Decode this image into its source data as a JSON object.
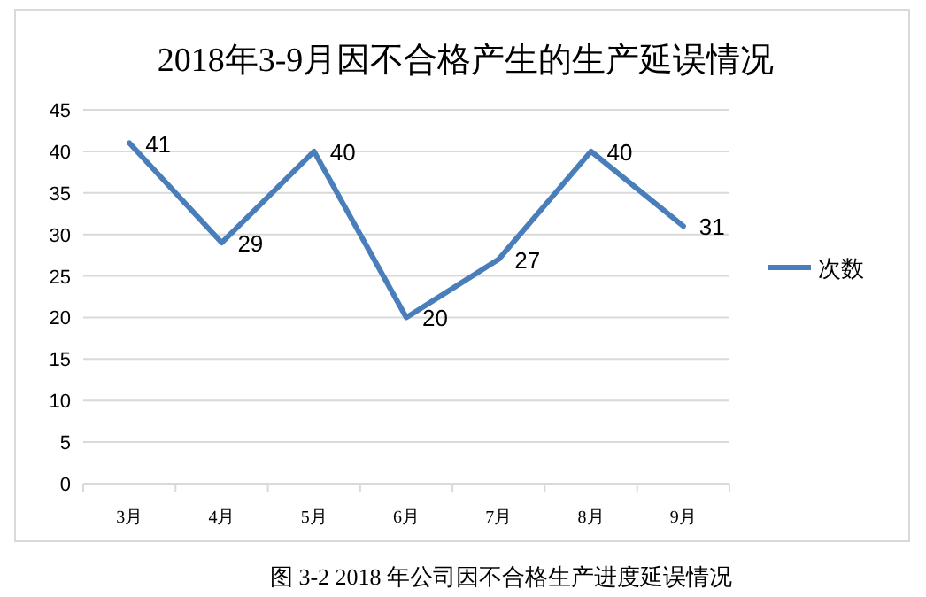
{
  "chart_data": {
    "type": "line",
    "title": "2018年3-9月因不合格产生的生产延误情况",
    "categories": [
      "3月",
      "4月",
      "5月",
      "6月",
      "7月",
      "8月",
      "9月"
    ],
    "series": [
      {
        "name": "次数",
        "color": "#4a7ebb",
        "values": [
          41,
          29,
          40,
          20,
          27,
          40,
          31
        ]
      }
    ],
    "ylim": [
      0,
      45
    ],
    "yticks": [
      0,
      5,
      10,
      15,
      20,
      25,
      30,
      35,
      40,
      45
    ],
    "grid": "y",
    "legend": "right",
    "data_labels": true,
    "marker": "none",
    "line_style": "solid",
    "annotations": [
      "图 3-2 2018 年公司因不合格生产进度延误情况"
    ]
  }
}
